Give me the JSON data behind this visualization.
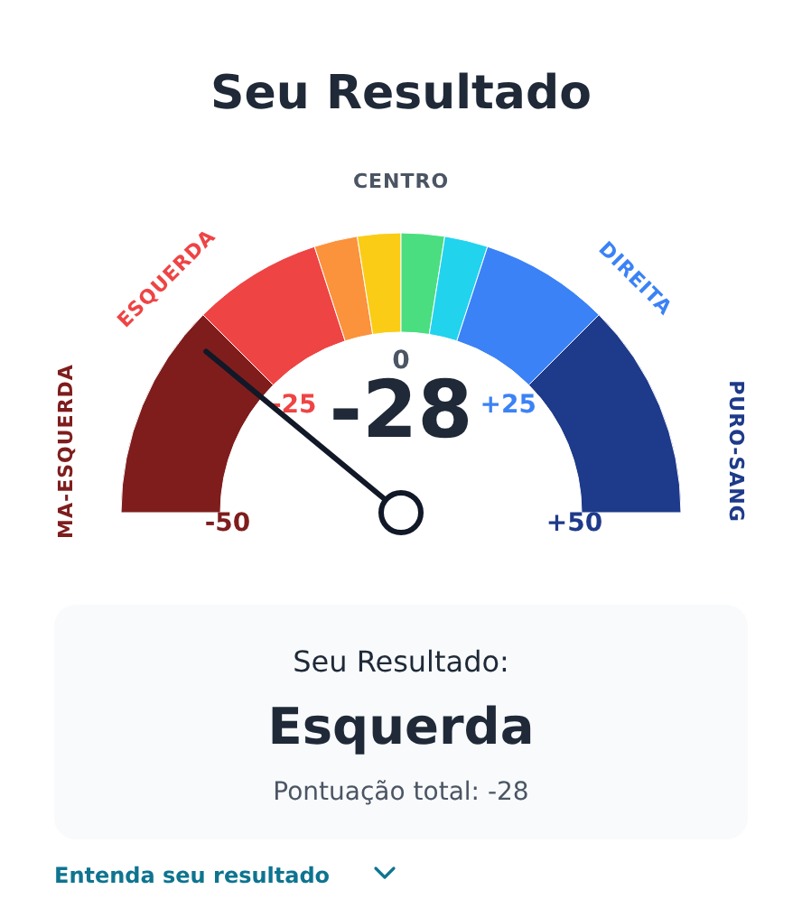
{
  "chart_data": {
    "type": "donut",
    "title": "Seu Resultado",
    "categories": [
      "MA-ESQUERDA",
      "ESQUERDA",
      null,
      null,
      null,
      null,
      "DIREITA",
      "PURO-SANG"
    ],
    "values": [
      25,
      15,
      5,
      5,
      5,
      5,
      15,
      25
    ],
    "colors": [
      "#7f1d1d",
      "#ef4444",
      "#fb923c",
      "#facc15",
      "#4ade80",
      "#22d3ee",
      "#3b82f6",
      "#1e3a8a"
    ],
    "needle": "MA-ESQUERDA",
    "annotations": [
      "-28",
      "CENTRO",
      "-50",
      "-25",
      "0",
      "+25",
      "+50",
      "Seu Resultado:",
      "Esquerda",
      "Pontuação total: -28",
      "Entenda seu resultado"
    ]
  }
}
